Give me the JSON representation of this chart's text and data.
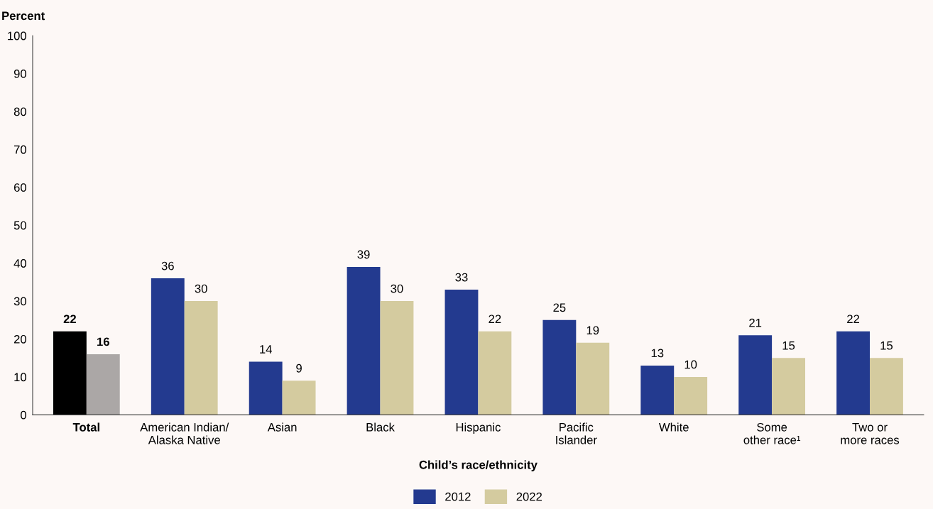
{
  "chart_data": {
    "type": "bar",
    "categories": [
      "Total",
      "American Indian/\nAlaska Native",
      "Asian",
      "Black",
      "Hispanic",
      "Pacific\nIslander",
      "White",
      "Some\nother race¹",
      "Two or\nmore races"
    ],
    "series": [
      {
        "name": "2012",
        "color": "#233a8f",
        "colors": [
          "#000000",
          "#233a8f",
          "#233a8f",
          "#233a8f",
          "#233a8f",
          "#233a8f",
          "#233a8f",
          "#233a8f",
          "#233a8f"
        ],
        "values": [
          22,
          36,
          14,
          39,
          33,
          25,
          13,
          21,
          22
        ]
      },
      {
        "name": "2022",
        "color": "#d4cb9f",
        "colors": [
          "#aba7a6",
          "#d4cb9f",
          "#d4cb9f",
          "#d4cb9f",
          "#d4cb9f",
          "#d4cb9f",
          "#d4cb9f",
          "#d4cb9f",
          "#d4cb9f"
        ],
        "values": [
          16,
          30,
          9,
          30,
          22,
          19,
          10,
          15,
          15
        ]
      }
    ],
    "xlabel": "Child’s race/ethnicity",
    "ylabel": "Percent",
    "ylim": [
      0,
      100
    ],
    "yticks": [
      0,
      10,
      20,
      30,
      40,
      50,
      60,
      70,
      80,
      90,
      100
    ],
    "data_labels": true,
    "grid": false,
    "legend": "bottom"
  }
}
